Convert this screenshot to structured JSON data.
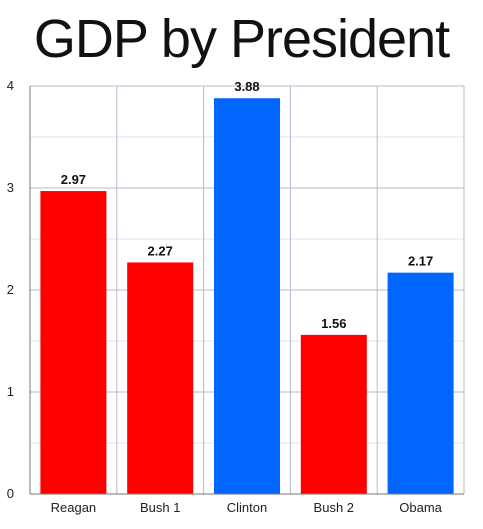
{
  "chart_data": {
    "type": "bar",
    "title": "GDP by President",
    "categories": [
      "Reagan",
      "Bush 1",
      "Clinton",
      "Bush 2",
      "Obama"
    ],
    "values": [
      2.97,
      2.27,
      3.88,
      1.56,
      2.17
    ],
    "bar_colors": [
      "#ff0000",
      "#ff0000",
      "#0066ff",
      "#ff0000",
      "#0066ff"
    ],
    "data_labels": [
      "2.97",
      "2.27",
      "3.88",
      "1.56",
      "2.17"
    ],
    "y_ticks": [
      "0",
      "1",
      "2",
      "3",
      "4"
    ],
    "ylim": [
      0,
      4
    ],
    "grid": true,
    "legend": "none"
  }
}
